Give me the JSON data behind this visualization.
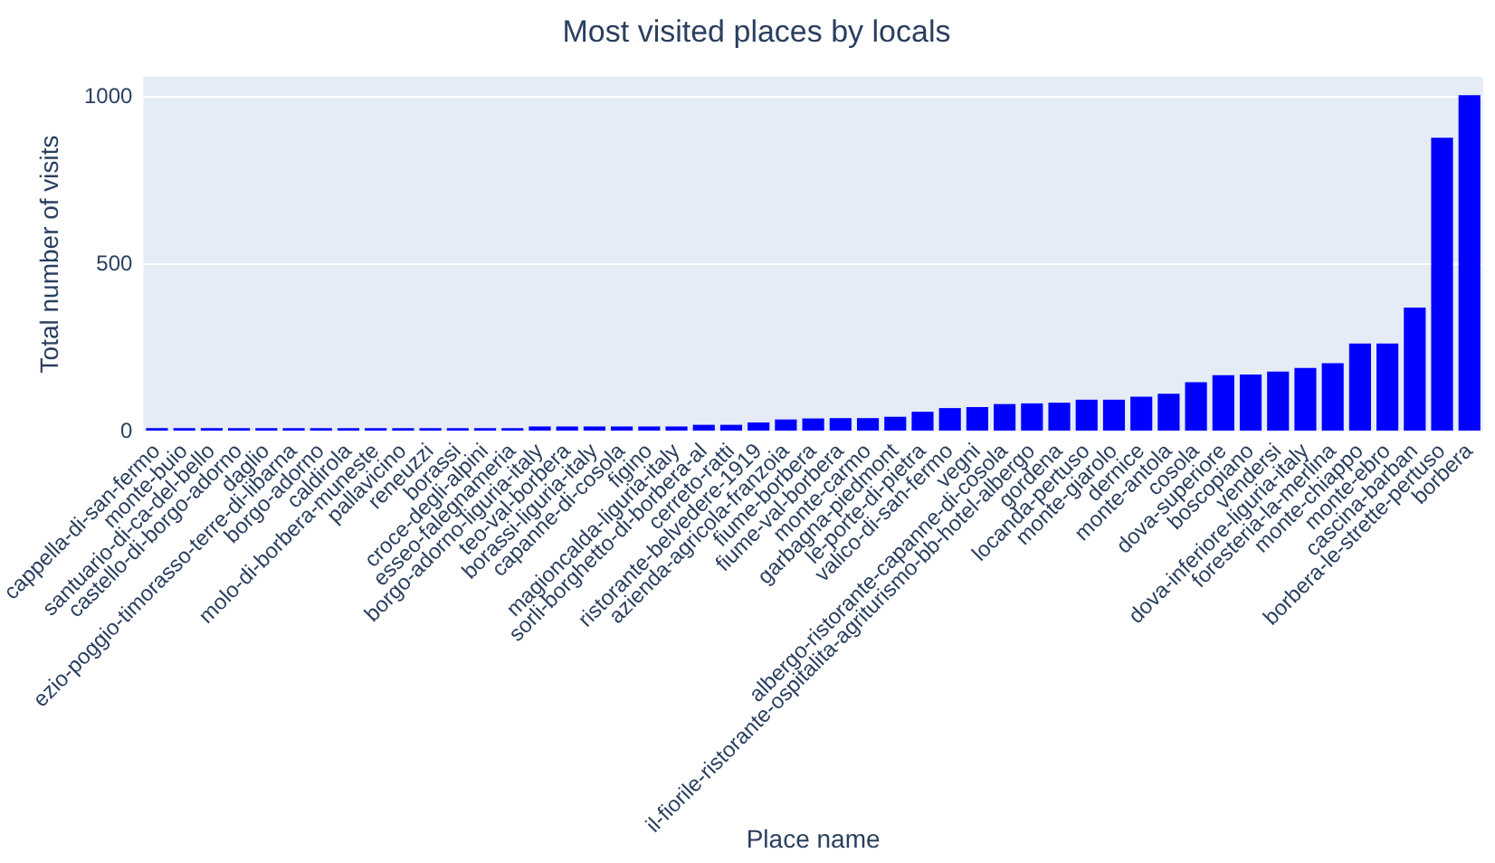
{
  "chart_data": {
    "type": "bar",
    "title": "Most visited places by locals",
    "xlabel": "Place name",
    "ylabel": "Total number of visits",
    "categories": [
      "cappella-di-san-fermo",
      "monte-buio",
      "santuario-di-ca-del-bello",
      "castello-di-borgo-adorno",
      "daglio",
      "ezio-poggio-timorasso-terre-di-libarna",
      "borgo-adorno",
      "caldirola",
      "molo-di-borbera-muneste",
      "pallavicino",
      "reneuzzi",
      "borassi",
      "croce-degli-alpini",
      "esseo-falegnameria",
      "borgo-adorno-liguria-italy",
      "teo-val-borbera",
      "borassi-liguria-italy",
      "capanne-di-cosola",
      "figino",
      "magioncalda-liguria-italy",
      "sorli-borghetto-di-borbera-al",
      "cerreto-ratti",
      "ristorante-belvedere-1919",
      "azienda-agricola-franzoia",
      "fiume-borbera",
      "fiume-val-borbera",
      "monte-carmo",
      "garbagna-piedmont",
      "le-porte-di-pietra",
      "valico-di-san-fermo",
      "vegni",
      "albergo-ristorante-capanne-di-cosola",
      "il-fiorile-ristorante-ospitalita-agriturismo-bb-hotel-albergo",
      "gordena",
      "locanda-pertuso",
      "monte-giarolo",
      "dernice",
      "monte-antola",
      "cosola",
      "dova-superiore",
      "boscopiano",
      "vendersi",
      "dova-inferiore-liguria-italy",
      "foresteria-la-merlina",
      "monte-chiappo",
      "monte-ebro",
      "cascina-barban",
      "borbera-le-strette-pertuso",
      "borbera"
    ],
    "values": [
      10,
      10,
      10,
      10,
      10,
      10,
      10,
      10,
      10,
      10,
      10,
      10,
      10,
      10,
      15,
      15,
      15,
      15,
      15,
      15,
      20,
      20,
      27,
      36,
      39,
      40,
      40,
      44,
      59,
      70,
      73,
      82,
      84,
      86,
      95,
      95,
      104,
      113,
      147,
      168,
      170,
      179,
      190,
      204,
      263,
      263,
      370,
      878,
      1005
    ],
    "color": "#0000ff",
    "ylim": [
      0,
      1060
    ],
    "yticks": [
      0,
      500,
      1000
    ],
    "grid": "y"
  }
}
